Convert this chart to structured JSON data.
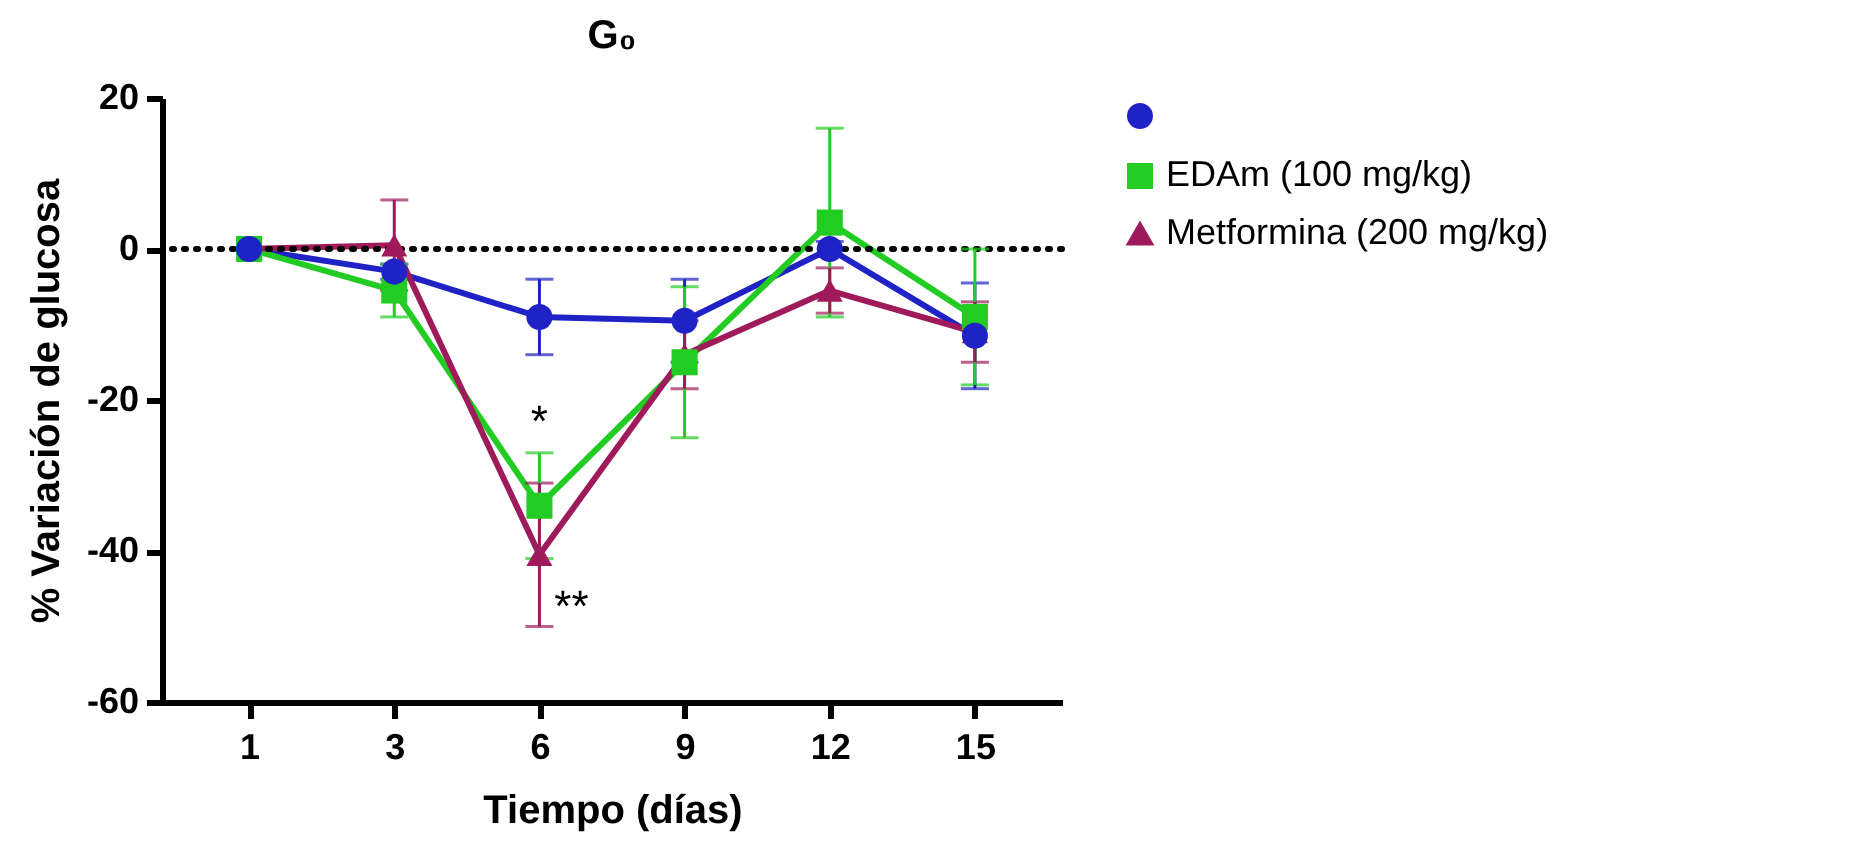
{
  "chart_data": {
    "type": "line",
    "title": "G₀",
    "xlabel": "Tiempo (días)",
    "ylabel": "% Variación de glucosa",
    "categories": [
      "1",
      "3",
      "6",
      "9",
      "12",
      "15"
    ],
    "series": [
      {
        "color": "#1f22c4",
        "marker": "circle",
        "values": [
          0,
          -3,
          -9,
          -9.5,
          0,
          -11.5
        ],
        "errors": [
          null,
          1,
          5,
          5.5,
          1,
          7
        ]
      },
      {
        "name": "EDAm (100 mg/kg)",
        "color": "#22cc22",
        "marker": "square",
        "values": [
          0,
          -5.5,
          -34,
          -15,
          3.5,
          -9
        ],
        "errors": [
          null,
          3.5,
          7,
          10,
          12.5,
          9
        ]
      },
      {
        "name": "Metformina (200 mg/kg)",
        "color": "#9e1a5a",
        "marker": "triangle",
        "values": [
          0,
          0.5,
          -40.5,
          -14,
          -5.5,
          -11
        ],
        "errors": [
          null,
          6,
          9.5,
          4.5,
          3,
          4
        ]
      }
    ],
    "ylim": [
      -60,
      20
    ],
    "yticks": [
      -60,
      -40,
      -20,
      0,
      20
    ],
    "ref_lines": [
      {
        "axis": "y",
        "value": 0,
        "color": "#000000",
        "line_style": "dotted"
      }
    ],
    "annotations": [
      {
        "text": "*",
        "x": "6",
        "y": -34
      },
      {
        "text": "**",
        "x": "6",
        "y": -40.5
      }
    ],
    "legend": "right",
    "grid": false
  }
}
